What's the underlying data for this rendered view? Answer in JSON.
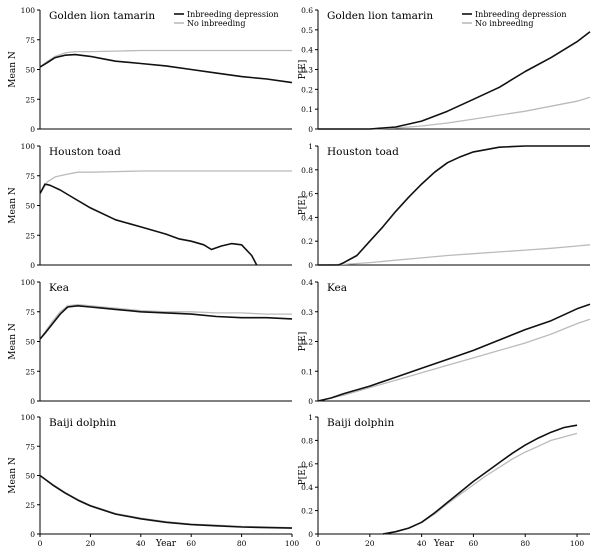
{
  "figure": {
    "x_axis_label": "Year",
    "mean_axis_label": "Mean N",
    "prob_axis_label": "P[E]",
    "colors": {
      "inbreeding": "#111111",
      "no_inbreeding": "#bbbbbb",
      "axis": "#000000"
    }
  },
  "legend": {
    "position": "top-right of first row",
    "entries": [
      "Inbreeding depression",
      "No inbreeding"
    ]
  },
  "chart_data": [
    {
      "type": "line",
      "panel": "mean",
      "row": 0,
      "title": "Golden lion tamarin",
      "xlabel": "Year",
      "ylabel": "Mean N",
      "xlim": [
        0,
        100
      ],
      "ylim": [
        0,
        100
      ],
      "xticks": [],
      "yticks": [
        0,
        25,
        50,
        75,
        100
      ],
      "series": [
        {
          "name": "Inbreeding depression",
          "x": [
            0,
            3,
            6,
            10,
            14,
            20,
            25,
            30,
            40,
            50,
            60,
            70,
            80,
            90,
            100
          ],
          "values": [
            52,
            56,
            60,
            62,
            62.5,
            61,
            59,
            57,
            55,
            53,
            50,
            47,
            44,
            42,
            39
          ]
        },
        {
          "name": "No inbreeding",
          "x": [
            0,
            3,
            6,
            10,
            14,
            20,
            30,
            40,
            50,
            60,
            70,
            80,
            90,
            100
          ],
          "values": [
            52,
            57,
            61,
            64,
            65,
            65,
            65.5,
            66,
            66,
            66,
            66,
            66,
            66,
            66
          ]
        }
      ]
    },
    {
      "type": "line",
      "panel": "probability",
      "row": 0,
      "title": "Golden lion tamarin",
      "xlabel": "Year",
      "ylabel": "P[E]",
      "xlim": [
        0,
        105
      ],
      "ylim": [
        0,
        0.6
      ],
      "xticks": [],
      "yticks": [
        0,
        0.1,
        0.2,
        0.3,
        0.4,
        0.5,
        0.6
      ],
      "series": [
        {
          "name": "Inbreeding depression",
          "x": [
            0,
            10,
            20,
            30,
            40,
            50,
            60,
            70,
            80,
            90,
            100,
            105
          ],
          "values": [
            0,
            0,
            0,
            0.01,
            0.04,
            0.09,
            0.15,
            0.21,
            0.29,
            0.36,
            0.44,
            0.49
          ]
        },
        {
          "name": "No inbreeding",
          "x": [
            0,
            20,
            30,
            40,
            50,
            60,
            70,
            80,
            90,
            100,
            105
          ],
          "values": [
            0,
            0,
            0.005,
            0.015,
            0.03,
            0.05,
            0.07,
            0.09,
            0.115,
            0.14,
            0.16
          ]
        }
      ]
    },
    {
      "type": "line",
      "panel": "mean",
      "row": 1,
      "title": "Houston toad",
      "xlabel": "Year",
      "ylabel": "Mean N",
      "xlim": [
        0,
        100
      ],
      "ylim": [
        0,
        100
      ],
      "xticks": [],
      "yticks": [
        0,
        25,
        50,
        75,
        100
      ],
      "series": [
        {
          "name": "Inbreeding depression",
          "x": [
            0,
            2,
            4,
            8,
            12,
            20,
            30,
            40,
            50,
            55,
            60,
            65,
            68,
            72,
            76,
            80,
            84,
            86
          ],
          "values": [
            60,
            68,
            67,
            63,
            58,
            48,
            38,
            32,
            26,
            22,
            20,
            17,
            13,
            16,
            18,
            17,
            8,
            0
          ]
        },
        {
          "name": "No inbreeding",
          "x": [
            0,
            3,
            6,
            10,
            15,
            20,
            30,
            40,
            50,
            60,
            70,
            80,
            90,
            100
          ],
          "values": [
            60,
            70,
            74,
            76,
            78,
            78,
            78.5,
            79,
            79,
            79,
            79,
            79,
            79,
            79
          ]
        }
      ]
    },
    {
      "type": "line",
      "panel": "probability",
      "row": 1,
      "title": "Houston toad",
      "xlabel": "Year",
      "ylabel": "P[E]",
      "xlim": [
        0,
        105
      ],
      "ylim": [
        0,
        1
      ],
      "xticks": [],
      "yticks": [
        0,
        0.2,
        0.4,
        0.6,
        0.8,
        1
      ],
      "series": [
        {
          "name": "Inbreeding depression",
          "x": [
            0,
            8,
            10,
            15,
            20,
            25,
            30,
            35,
            40,
            45,
            50,
            55,
            60,
            65,
            70,
            75,
            80,
            90,
            100,
            105
          ],
          "values": [
            0,
            0,
            0.02,
            0.08,
            0.2,
            0.32,
            0.45,
            0.57,
            0.68,
            0.78,
            0.86,
            0.91,
            0.95,
            0.97,
            0.99,
            0.995,
            1,
            1,
            1,
            1
          ]
        },
        {
          "name": "No inbreeding",
          "x": [
            0,
            10,
            20,
            30,
            40,
            50,
            60,
            70,
            80,
            90,
            100,
            105
          ],
          "values": [
            0,
            0.005,
            0.02,
            0.04,
            0.06,
            0.08,
            0.095,
            0.11,
            0.125,
            0.14,
            0.16,
            0.17
          ]
        }
      ]
    },
    {
      "type": "line",
      "panel": "mean",
      "row": 2,
      "title": "Kea",
      "xlabel": "Year",
      "ylabel": "Mean N",
      "xlim": [
        0,
        100
      ],
      "ylim": [
        0,
        100
      ],
      "xticks": [],
      "yticks": [
        0,
        25,
        50,
        75,
        100
      ],
      "series": [
        {
          "name": "Inbreeding depression",
          "x": [
            0,
            2,
            5,
            8,
            11,
            15,
            20,
            25,
            30,
            40,
            50,
            60,
            70,
            80,
            90,
            100
          ],
          "values": [
            52,
            57,
            65,
            73,
            79,
            80,
            79,
            78,
            77,
            75,
            74,
            73,
            71,
            70,
            70,
            69
          ]
        },
        {
          "name": "No inbreeding",
          "x": [
            0,
            2,
            5,
            8,
            11,
            15,
            20,
            25,
            30,
            40,
            50,
            60,
            70,
            80,
            90,
            100
          ],
          "values": [
            52,
            58,
            67,
            75,
            80,
            81,
            80,
            79,
            78,
            76,
            75,
            75,
            74,
            74,
            73,
            73
          ]
        }
      ]
    },
    {
      "type": "line",
      "panel": "probability",
      "row": 2,
      "title": "Kea",
      "xlabel": "Year",
      "ylabel": "P[E]",
      "xlim": [
        0,
        105
      ],
      "ylim": [
        0,
        0.4
      ],
      "xticks": [],
      "yticks": [
        0,
        0.1,
        0.2,
        0.3,
        0.4
      ],
      "series": [
        {
          "name": "Inbreeding depression",
          "x": [
            0,
            5,
            10,
            20,
            30,
            40,
            50,
            60,
            70,
            80,
            90,
            100,
            105
          ],
          "values": [
            0,
            0.01,
            0.025,
            0.05,
            0.08,
            0.11,
            0.14,
            0.17,
            0.205,
            0.24,
            0.27,
            0.31,
            0.325
          ]
        },
        {
          "name": "No inbreeding",
          "x": [
            0,
            5,
            10,
            20,
            30,
            40,
            50,
            60,
            70,
            80,
            90,
            100,
            105
          ],
          "values": [
            0,
            0.01,
            0.02,
            0.045,
            0.07,
            0.095,
            0.12,
            0.145,
            0.17,
            0.195,
            0.225,
            0.26,
            0.275
          ]
        }
      ]
    },
    {
      "type": "line",
      "panel": "mean",
      "row": 3,
      "title": "Baiji dolphin",
      "xlabel": "Year",
      "ylabel": "Mean N",
      "xlim": [
        0,
        100
      ],
      "ylim": [
        0,
        100
      ],
      "xticks": [
        0,
        20,
        40,
        60,
        80,
        100
      ],
      "yticks": [
        0,
        25,
        50,
        75,
        100
      ],
      "series": [
        {
          "name": "Inbreeding depression",
          "x": [
            0,
            5,
            10,
            15,
            20,
            30,
            40,
            50,
            60,
            70,
            80,
            90,
            100
          ],
          "values": [
            50,
            42,
            35,
            29,
            24,
            17,
            13,
            10,
            8,
            7,
            6,
            5.5,
            5
          ]
        },
        {
          "name": "No inbreeding",
          "x": [
            0,
            5,
            10,
            15,
            20,
            30,
            40,
            50,
            60,
            70,
            80,
            90,
            100
          ],
          "values": [
            50,
            42.5,
            35.5,
            29.5,
            24.5,
            17.5,
            13.5,
            10.5,
            8.5,
            7.5,
            6.5,
            6,
            5.5
          ]
        }
      ]
    },
    {
      "type": "line",
      "panel": "probability",
      "row": 3,
      "title": "Baiji dolphin",
      "xlabel": "Year",
      "ylabel": "P[E]",
      "xlim": [
        0,
        105
      ],
      "ylim": [
        0,
        1
      ],
      "xticks": [
        0,
        20,
        40,
        60,
        80,
        100
      ],
      "yticks": [
        0,
        0.2,
        0.4,
        0.6,
        0.8,
        1
      ],
      "series": [
        {
          "name": "Inbreeding depression",
          "x": [
            25,
            30,
            35,
            40,
            45,
            50,
            55,
            60,
            65,
            70,
            75,
            80,
            85,
            90,
            95,
            100
          ],
          "values": [
            0,
            0.02,
            0.05,
            0.1,
            0.18,
            0.27,
            0.36,
            0.45,
            0.53,
            0.61,
            0.69,
            0.76,
            0.82,
            0.87,
            0.91,
            0.93
          ]
        },
        {
          "name": "No inbreeding",
          "x": [
            25,
            30,
            35,
            40,
            45,
            50,
            55,
            60,
            65,
            70,
            75,
            80,
            85,
            90,
            95,
            100
          ],
          "values": [
            0,
            0.02,
            0.05,
            0.1,
            0.17,
            0.26,
            0.34,
            0.42,
            0.5,
            0.57,
            0.64,
            0.7,
            0.75,
            0.8,
            0.83,
            0.86
          ]
        }
      ]
    }
  ]
}
